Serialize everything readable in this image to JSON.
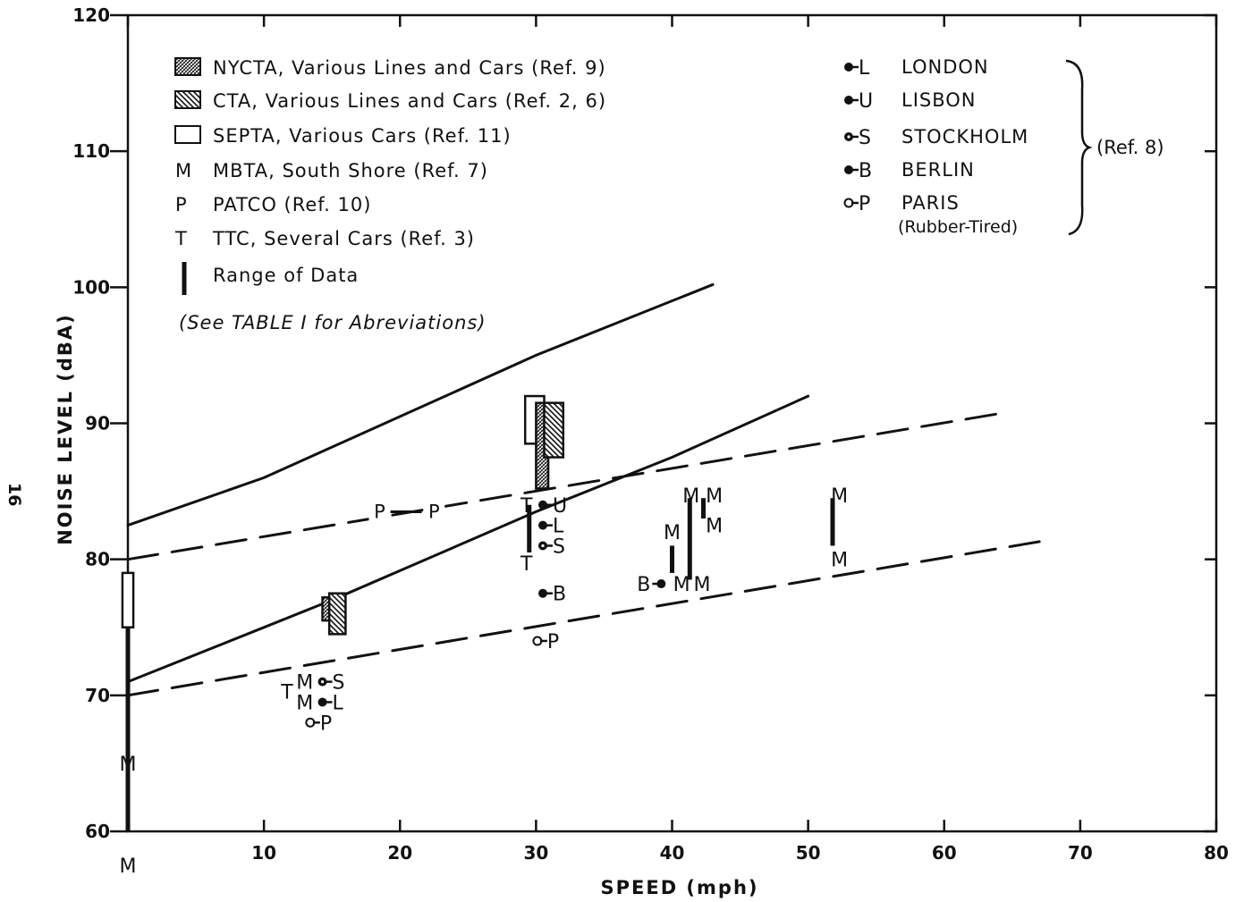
{
  "page_number": "16",
  "chart_data": {
    "type": "scatter",
    "title": "",
    "xlabel": "SPEED (mph)",
    "ylabel": "NOISE LEVEL (dBA)",
    "xlim": [
      0,
      80
    ],
    "ylim": [
      60,
      120
    ],
    "x_ticks": [
      0,
      10,
      20,
      30,
      40,
      50,
      60,
      70,
      80
    ],
    "x_tick_labels": [
      "",
      "10",
      "20",
      "30",
      "40",
      "50",
      "60",
      "70",
      "80"
    ],
    "y_ticks": [
      60,
      70,
      80,
      90,
      100,
      110,
      120
    ],
    "y_tick_labels": [
      "60",
      "70",
      "80",
      "90",
      "100",
      "110",
      "120"
    ],
    "grid": false,
    "legend_left": [
      {
        "symbol": "crosshatch",
        "text": "NYCTA, Various Lines and Cars (Ref. 9)"
      },
      {
        "symbol": "hatch",
        "text": "CTA, Various Lines and Cars (Ref. 2, 6)"
      },
      {
        "symbol": "open",
        "text": "SEPTA, Various Cars (Ref. 11)"
      },
      {
        "symbol": "M",
        "text": "MBTA, South Shore (Ref. 7)"
      },
      {
        "symbol": "P",
        "text": "PATCO (Ref. 10)"
      },
      {
        "symbol": "T",
        "text": "TTC, Several Cars (Ref. 3)"
      },
      {
        "symbol": "bar",
        "text": "Range of Data"
      }
    ],
    "legend_note": "(See TABLE I for Abreviations)",
    "legend_right": [
      {
        "letter": "L",
        "text": "LONDON",
        "marker": "filled"
      },
      {
        "letter": "U",
        "text": "LISBON",
        "marker": "filled"
      },
      {
        "letter": "S",
        "text": "STOCKHOLM",
        "marker": "dotted"
      },
      {
        "letter": "B",
        "text": "BERLIN",
        "marker": "filled"
      },
      {
        "letter": "P",
        "text": "PARIS",
        "marker": "open"
      }
    ],
    "legend_right_sub": "(Rubber-Tired)",
    "legend_right_ref": "(Ref. 8)",
    "lines": [
      {
        "style": "solid",
        "x": [
          0,
          10,
          20,
          30,
          43
        ],
        "y": [
          82.5,
          86,
          90.5,
          95,
          100.2
        ]
      },
      {
        "style": "solid",
        "x": [
          0,
          10,
          15,
          30,
          40,
          50
        ],
        "y": [
          71,
          75,
          77,
          83.5,
          87.5,
          92
        ]
      },
      {
        "style": "dashed",
        "x": [
          0,
          64
        ],
        "y": [
          80,
          90.7
        ]
      },
      {
        "style": "dashed",
        "x": [
          0,
          67
        ],
        "y": [
          70,
          81.3
        ]
      }
    ],
    "line_labels": [
      {
        "text": "P",
        "x": 18.5,
        "y": 83.3
      },
      {
        "text": "P",
        "x": 22.5,
        "y": 83.3
      }
    ],
    "boxes": [
      {
        "system": "NYCTA",
        "pattern": "crosshatch",
        "x0": 14.3,
        "x1": 15.3,
        "ylow": 75.5,
        "yhigh": 77.2
      },
      {
        "system": "CTA",
        "pattern": "hatch",
        "x0": 14.8,
        "x1": 16.0,
        "ylow": 74.5,
        "yhigh": 77.5
      },
      {
        "system": "SEPTA",
        "pattern": "open",
        "x0": -0.4,
        "x1": 0.4,
        "ylow": 75,
        "yhigh": 79
      },
      {
        "system": "SEPTA",
        "pattern": "open",
        "x0": 29.2,
        "x1": 30.6,
        "ylow": 88.5,
        "yhigh": 92
      },
      {
        "system": "NYCTA",
        "pattern": "crosshatch",
        "x0": 30.0,
        "x1": 30.9,
        "ylow": 85.2,
        "yhigh": 91.5
      },
      {
        "system": "CTA",
        "pattern": "hatch",
        "x0": 30.6,
        "x1": 32.0,
        "ylow": 87.5,
        "yhigh": 91.5
      }
    ],
    "ranges": [
      {
        "x": 0,
        "ylow": 60,
        "yhigh": 79
      },
      {
        "x": 29.5,
        "ylow": 80.5,
        "yhigh": 84
      },
      {
        "x": 40,
        "ylow": 79,
        "yhigh": 81
      },
      {
        "x": 41.3,
        "ylow": 78.5,
        "yhigh": 84.5
      },
      {
        "x": 42.3,
        "ylow": 83,
        "yhigh": 84.5
      },
      {
        "x": 51.8,
        "ylow": 81,
        "yhigh": 84.5
      }
    ],
    "letter_points": [
      {
        "text": "M",
        "x": 0,
        "y": 65
      },
      {
        "text": "M",
        "x": 0,
        "y": 57.5
      },
      {
        "text": "T",
        "x": 11.7,
        "y": 70.3
      },
      {
        "text": "M",
        "x": 13,
        "y": 71
      },
      {
        "text": "M",
        "x": 13,
        "y": 69.5
      },
      {
        "text": "T",
        "x": 29.3,
        "y": 84
      },
      {
        "text": "T",
        "x": 29.3,
        "y": 79.7
      },
      {
        "text": "M",
        "x": 40,
        "y": 82
      },
      {
        "text": "M",
        "x": 41.4,
        "y": 84.7
      },
      {
        "text": "M",
        "x": 43.1,
        "y": 84.7
      },
      {
        "text": "M",
        "x": 43.1,
        "y": 82.5
      },
      {
        "text": "M",
        "x": 40.7,
        "y": 78.2
      },
      {
        "text": "M",
        "x": 42.2,
        "y": 78.2
      },
      {
        "text": "M",
        "x": 52.3,
        "y": 84.7
      },
      {
        "text": "M",
        "x": 52.3,
        "y": 80
      }
    ],
    "city_points": [
      {
        "letter": "S",
        "x": 14.3,
        "y": 71,
        "marker": "dotted"
      },
      {
        "letter": "L",
        "x": 14.3,
        "y": 69.5,
        "marker": "filled"
      },
      {
        "letter": "P",
        "x": 13.4,
        "y": 68,
        "marker": "open"
      },
      {
        "letter": "U",
        "x": 30.5,
        "y": 84,
        "marker": "filled"
      },
      {
        "letter": "L",
        "x": 30.5,
        "y": 82.5,
        "marker": "filled"
      },
      {
        "letter": "S",
        "x": 30.5,
        "y": 81,
        "marker": "dotted"
      },
      {
        "letter": "B",
        "x": 30.5,
        "y": 77.5,
        "marker": "filled"
      },
      {
        "letter": "P",
        "x": 30.1,
        "y": 74,
        "marker": "open"
      },
      {
        "letter": "B",
        "x": 39.2,
        "y": 78.2,
        "marker": "filled",
        "label_side": "left"
      }
    ]
  }
}
